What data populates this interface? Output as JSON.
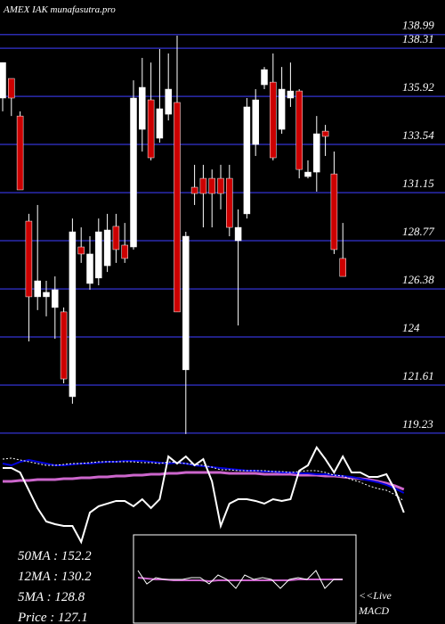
{
  "chart_data": [
    {
      "type": "candlestick",
      "title": "AMEX  IAK munafasutra.pro",
      "ylim": [
        119.05,
        140.7
      ],
      "yticks": [
        138.99,
        138.31,
        135.92,
        133.54,
        131.15,
        128.77,
        126.38,
        124,
        121.61,
        119.23
      ],
      "grid": true,
      "grid_color": "#2b2bb0",
      "up_color": "#ffffff",
      "down_color": "#cc0000",
      "open": [
        135.84,
        136.81,
        134.95,
        129.74,
        125.99,
        125.99,
        125.46,
        125.24,
        121.04,
        128.46,
        126.65,
        126.92,
        127.53,
        129.48,
        128.55,
        128.46,
        134.29,
        135.75,
        133.85,
        135.04,
        135.62,
        122.37,
        131.42,
        131.86,
        131.86,
        131.86,
        131.86,
        128.77,
        130.1,
        133.54,
        136.5,
        136.63,
        134.29,
        135.84,
        136.19,
        131.95,
        132.17,
        134.2,
        132.08,
        127.89
      ],
      "high": [
        137.6,
        136.81,
        135.18,
        130.1,
        130.54,
        126.78,
        127.0,
        125.46,
        129.87,
        129.43,
        128.99,
        129.87,
        130.1,
        130.1,
        129.65,
        136.72,
        137.83,
        137.6,
        138.27,
        138.05,
        138.93,
        129.21,
        132.53,
        132.53,
        132.3,
        132.53,
        132.53,
        130.32,
        135.84,
        136.28,
        137.38,
        138.05,
        137.38,
        137.6,
        136.28,
        132.75,
        134.95,
        134.51,
        133.19,
        129.65
      ],
      "low": [
        135.18,
        134.95,
        131.29,
        123.78,
        125.33,
        125.02,
        123.91,
        121.7,
        120.69,
        127.67,
        126.34,
        126.56,
        127.22,
        127.67,
        127.67,
        128.33,
        133.19,
        132.75,
        133.63,
        134.73,
        125.24,
        119.19,
        130.54,
        129.43,
        129.43,
        130.32,
        128.99,
        124.57,
        129.87,
        132.97,
        136.28,
        132.75,
        134.07,
        135.4,
        131.86,
        131.86,
        131.2,
        132.97,
        128.11,
        127.0
      ],
      "close": [
        137.6,
        135.84,
        131.29,
        125.99,
        126.78,
        126.21,
        126.34,
        121.92,
        129.21,
        128.11,
        128.11,
        129.21,
        129.3,
        128.33,
        127.89,
        135.84,
        136.37,
        132.88,
        135.31,
        136.28,
        125.24,
        128.99,
        131.11,
        131.11,
        131.11,
        131.11,
        129.43,
        129.43,
        135.4,
        135.75,
        137.25,
        132.88,
        136.28,
        136.19,
        132.3,
        132.17,
        134.07,
        133.94,
        128.33,
        127.0
      ],
      "annotations": [
        "50MA : 152.2",
        "12MA : 130.2",
        "5MA  : 128.8",
        "Price   : 127.1"
      ]
    },
    {
      "type": "line",
      "ylim": [
        0,
        100
      ],
      "series": [
        {
          "color": "#cc66cc",
          "width": 3,
          "dash": false,
          "values": [
            62.5,
            62.5,
            63.3,
            63.3,
            64.2,
            64.2,
            64.2,
            65,
            65,
            65.8,
            65.8,
            66.7,
            66.7,
            67.5,
            67.5,
            68.3,
            68.3,
            69.2,
            69.2,
            70,
            70,
            70.8,
            70.8,
            70.8,
            70.8,
            70.8,
            70,
            70,
            70,
            70,
            69.2,
            69.2,
            69.2,
            69.2,
            68.3,
            68.3,
            68.3,
            67.5,
            67.5,
            66.7,
            65.8,
            65,
            64.2,
            62.5,
            60.8,
            58.3,
            55
          ]
        },
        {
          "color": "#0000dd",
          "width": 2,
          "dash": false,
          "values": [
            79.2,
            77.5,
            80.8,
            82.5,
            80.8,
            79.2,
            77.5,
            77.5,
            78.3,
            79.2,
            79.2,
            80,
            80.8,
            80.8,
            81.7,
            81.7,
            81.7,
            80.8,
            80,
            79.2,
            80,
            79.2,
            77.5,
            76.7,
            75.8,
            75,
            74.2,
            73.3,
            72.5,
            72.5,
            71.7,
            71.7,
            70.8,
            70.8,
            70,
            70,
            69.2,
            69.2,
            68.3,
            67.5,
            66.7,
            65,
            63.3,
            61.7,
            59.2,
            55.8,
            51.7
          ]
        },
        {
          "color": "#ffffff",
          "width": 1,
          "dash": true,
          "values": [
            83.3,
            84.2,
            82.5,
            80.8,
            79.2,
            77.5,
            77.5,
            78.3,
            79.2,
            79.2,
            80,
            80.8,
            80.8,
            80.8,
            80.8,
            80.8,
            80,
            80,
            79.2,
            80.8,
            80,
            79.2,
            78.3,
            77.5,
            75.8,
            73.3,
            73.3,
            72.5,
            72.5,
            72.5,
            72.5,
            71.7,
            71.7,
            70.8,
            71.7,
            72.5,
            72.5,
            70.8,
            68.3,
            67.5,
            64.2,
            61.7,
            58.3,
            55.8,
            54.2,
            50,
            44.2
          ]
        },
        {
          "color": "#ffffff",
          "width": 2,
          "dash": false,
          "values": [
            75,
            75,
            70.8,
            54.2,
            37.5,
            25,
            22.5,
            20.8,
            20.8,
            5.8,
            33.3,
            39.2,
            41.7,
            44.2,
            44.2,
            39.2,
            45.8,
            37.5,
            45.8,
            85.8,
            79.2,
            85.8,
            77.5,
            83.3,
            62.5,
            20.8,
            41.7,
            45.8,
            45.8,
            44.2,
            41.7,
            45.8,
            44.2,
            45.8,
            72.5,
            77.5,
            94.2,
            83.3,
            70.8,
            85.8,
            70.8,
            70.8,
            66.7,
            66.7,
            69.2,
            54.2,
            33.3
          ]
        }
      ]
    },
    {
      "type": "line",
      "ylim": [
        -50,
        50
      ],
      "series": [
        {
          "color": "#cc66cc",
          "width": 2,
          "dash": false,
          "values": [
            2,
            1,
            0,
            0,
            -1,
            -1,
            -1,
            -1,
            -2,
            -1,
            -1,
            -1,
            -1,
            -1,
            -1,
            -1,
            -1,
            -1,
            0,
            0,
            0,
            0,
            0,
            0
          ]
        },
        {
          "color": "#ffffff",
          "width": 1,
          "dash": false,
          "values": [
            10,
            -5,
            2,
            0,
            0,
            0,
            2,
            2,
            -5,
            5,
            0,
            -10,
            5,
            0,
            2,
            0,
            -10,
            0,
            2,
            0,
            10,
            -10,
            0,
            0
          ]
        }
      ],
      "annotations": [
        "<<Live",
        "MACD"
      ]
    }
  ]
}
